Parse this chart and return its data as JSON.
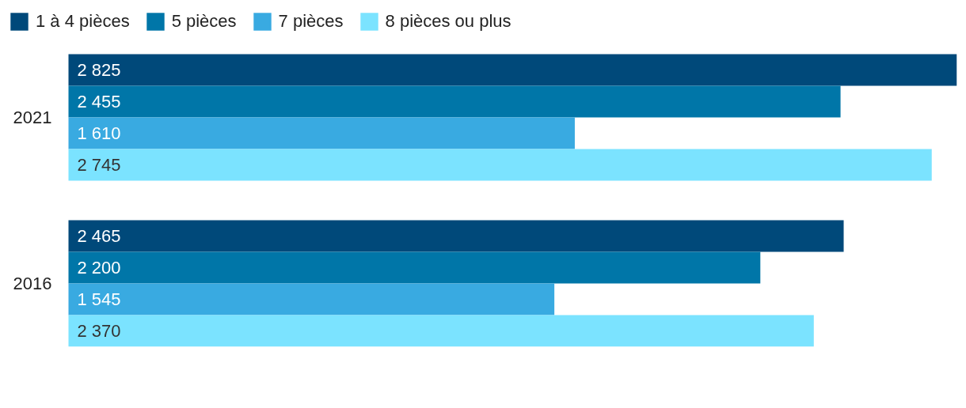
{
  "chart_data": {
    "type": "bar",
    "orientation": "horizontal",
    "categories": [
      "2021",
      "2016"
    ],
    "series": [
      {
        "name": "1 à 4 pièces",
        "color": "#00497a",
        "values": [
          2825,
          2465
        ],
        "value_labels": [
          "2 825",
          "2 465"
        ]
      },
      {
        "name": "5 pièces",
        "color": "#0076a8",
        "values": [
          2455,
          2200
        ],
        "value_labels": [
          "2 455",
          "2 200"
        ]
      },
      {
        "name": "7 pièces",
        "color": "#39aae1",
        "values": [
          1610,
          1545
        ],
        "value_labels": [
          "1 610",
          "1 545"
        ]
      },
      {
        "name": "8 pièces ou plus",
        "color": "#7be3ff",
        "values": [
          2745,
          2370
        ],
        "value_labels": [
          "2 745",
          "2 370"
        ]
      }
    ],
    "legend": "top left",
    "grid": false,
    "tick_labels": "y"
  }
}
